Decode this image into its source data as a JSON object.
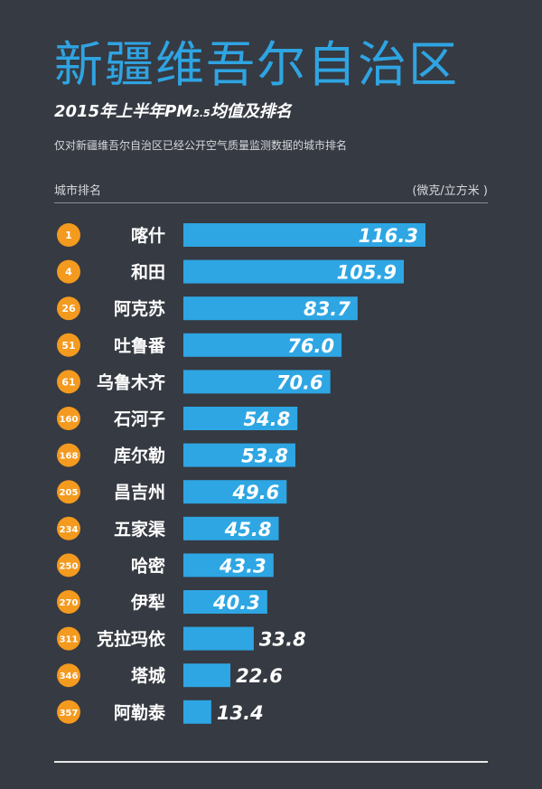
{
  "header": {
    "title": "新疆维吾尔自治区",
    "subtitle_main": "2015年上半年PM",
    "subtitle_sub": "2.5",
    "subtitle_tail": "均值及排名",
    "description": "仅对新疆维吾尔自治区已经公开空气质量监测数据的城市排名",
    "col_left": "城市排名",
    "col_right": "(微克/立方米 )"
  },
  "colors": {
    "background": "#363a42",
    "title": "#2fa4e2",
    "bar": "#2ea6e3",
    "badge": "#f39a1f"
  },
  "chart_data": {
    "type": "bar",
    "orientation": "horizontal",
    "categories": [
      "喀什",
      "和田",
      "阿克苏",
      "吐鲁番",
      "乌鲁木齐",
      "石河子",
      "库尔勒",
      "昌吉州",
      "五家渠",
      "哈密",
      "伊犁",
      "克拉玛依",
      "塔城",
      "阿勒泰"
    ],
    "ranks": [
      "1",
      "4",
      "26",
      "51",
      "61",
      "160",
      "168",
      "205",
      "234",
      "250",
      "270",
      "311",
      "346",
      "357"
    ],
    "values": [
      116.3,
      105.9,
      83.7,
      76.0,
      70.6,
      54.8,
      53.8,
      49.6,
      45.8,
      43.3,
      40.3,
      33.8,
      22.6,
      13.4
    ],
    "value_labels": [
      "116.3",
      "105.9",
      "83.7",
      "76.0",
      "70.6",
      "54.8",
      "53.8",
      "49.6",
      "45.8",
      "43.3",
      "40.3",
      "33.8",
      "22.6",
      "13.4"
    ],
    "xlim": [
      0,
      116.3
    ],
    "grid": false,
    "legend": "none"
  }
}
